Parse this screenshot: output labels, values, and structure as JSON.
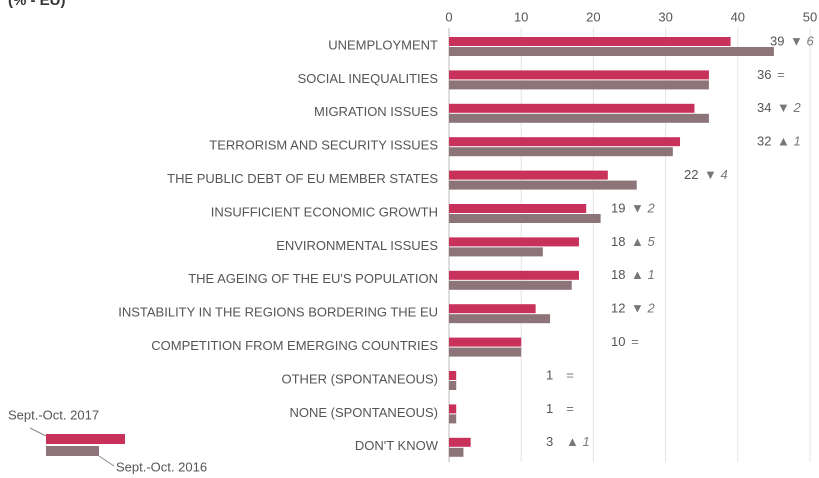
{
  "chart_data": {
    "type": "hbar",
    "subtitle": "(% - EU)",
    "categories": [
      "UNEMPLOYMENT",
      "SOCIAL INEQUALITIES",
      "MIGRATION ISSUES",
      "TERRORISM AND SECURITY ISSUES",
      "THE PUBLIC DEBT OF EU MEMBER STATES",
      "INSUFFICIENT ECONOMIC GROWTH",
      "ENVIRONMENTAL ISSUES",
      "THE AGEING OF THE EU'S POPULATION",
      "INSTABILITY IN THE REGIONS BORDERING THE EU",
      "COMPETITION FROM EMERGING COUNTRIES",
      "OTHER (SPONTANEOUS)",
      "NONE (SPONTANEOUS)",
      "DON'T KNOW"
    ],
    "series": [
      {
        "name": "Sept.-Oct. 2017",
        "color": "#c8325a",
        "values": [
          39,
          36,
          34,
          32,
          22,
          19,
          18,
          18,
          12,
          10,
          1,
          1,
          3
        ]
      },
      {
        "name": "Sept.-Oct. 2016",
        "color": "#8c7479",
        "values": [
          45,
          36,
          36,
          31,
          26,
          21,
          13,
          17,
          14,
          10,
          1,
          1,
          2
        ]
      }
    ],
    "change_labels": [
      "▼ 6",
      "=",
      "▼ 2",
      "▲ 1",
      "▼ 4",
      "▼ 2",
      "▲ 5",
      "▲ 1",
      "▼ 2",
      "=",
      "=",
      "=",
      "▲ 1"
    ],
    "xlim": [
      0,
      50
    ],
    "xticks": [
      0,
      10,
      20,
      30,
      40,
      50
    ],
    "grid": true
  }
}
